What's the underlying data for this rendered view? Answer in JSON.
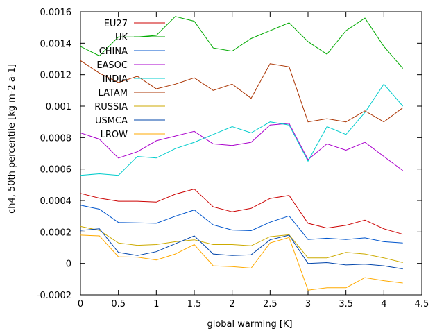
{
  "chart_data": {
    "type": "line",
    "xlabel": "global warming [K]",
    "ylabel": "ch4, 50th percentile [kg m-2 a-1]",
    "xlim": [
      0,
      4.5
    ],
    "ylim": [
      -0.0002,
      0.0016
    ],
    "xticks": [
      0,
      0.5,
      1,
      1.5,
      2,
      2.5,
      3,
      3.5,
      4,
      4.5
    ],
    "xtick_labels": [
      "0",
      "0.5",
      "1",
      "1.5",
      "2",
      "2.5",
      "3",
      "3.5",
      "4",
      "4.5"
    ],
    "yticks": [
      -0.0002,
      0,
      0.0002,
      0.0004,
      0.0006,
      0.0008,
      0.001,
      0.0012,
      0.0014,
      0.0016
    ],
    "ytick_labels": [
      "-0.0002",
      "0",
      "0.0002",
      "0.0004",
      "0.0006",
      "0.0008",
      "0.001",
      "0.0012",
      "0.0014",
      "0.0016"
    ],
    "grid": false,
    "legend_position": "top-left",
    "x": [
      0,
      0.25,
      0.5,
      0.75,
      1,
      1.25,
      1.5,
      1.75,
      2,
      2.25,
      2.5,
      2.75,
      3,
      3.25,
      3.5,
      3.75,
      4,
      4.25
    ],
    "series": [
      {
        "name": "EU27",
        "color": "#cc0000",
        "values": [
          0.000445,
          0.000415,
          0.000395,
          0.000395,
          0.00039,
          0.00044,
          0.000473,
          0.00036,
          0.000328,
          0.00035,
          0.000413,
          0.000432,
          0.000255,
          0.000225,
          0.000242,
          0.000275,
          0.00022,
          0.000185
        ]
      },
      {
        "name": "UK",
        "color": "#00aa00",
        "values": [
          0.00138,
          0.00132,
          0.00144,
          0.00144,
          0.00145,
          0.00157,
          0.00154,
          0.00137,
          0.00135,
          0.00143,
          0.00148,
          0.00153,
          0.00141,
          0.00133,
          0.00148,
          0.00156,
          0.00138,
          0.00124
        ]
      },
      {
        "name": "CHINA",
        "color": "#0055cc",
        "values": [
          0.00037,
          0.000345,
          0.00026,
          0.000258,
          0.000255,
          0.0003,
          0.00034,
          0.000245,
          0.000212,
          0.000208,
          0.000262,
          0.000302,
          0.000152,
          0.00016,
          0.000152,
          0.000162,
          0.000138,
          0.00013
        ]
      },
      {
        "name": "EASOC",
        "color": "#aa00cc",
        "values": [
          0.00083,
          0.00079,
          0.00067,
          0.00071,
          0.00078,
          0.00081,
          0.00084,
          0.00076,
          0.00075,
          0.00077,
          0.00088,
          0.00089,
          0.00066,
          0.00076,
          0.00072,
          0.00077,
          0.00068,
          0.00059
        ]
      },
      {
        "name": "INDIA",
        "color": "#00cccc",
        "values": [
          0.00056,
          0.00057,
          0.00056,
          0.00068,
          0.00067,
          0.00073,
          0.00077,
          0.00082,
          0.00087,
          0.00083,
          0.0009,
          0.00088,
          0.00065,
          0.00087,
          0.00082,
          0.00096,
          0.00114,
          0.001
        ]
      },
      {
        "name": "LATAM",
        "color": "#aa3300",
        "values": [
          0.00129,
          0.00121,
          0.00115,
          0.00119,
          0.00111,
          0.00114,
          0.00118,
          0.0011,
          0.00114,
          0.00105,
          0.00127,
          0.00125,
          0.0009,
          0.00092,
          0.0009,
          0.00097,
          0.0009,
          0.00099
        ]
      },
      {
        "name": "RUSSIA",
        "color": "#ccaa00",
        "values": [
          0.000235,
          0.00021,
          0.00013,
          0.000115,
          0.00012,
          0.000138,
          0.00015,
          0.00012,
          0.00012,
          0.000112,
          0.00017,
          0.000182,
          3.5e-05,
          3.5e-05,
          7e-05,
          6e-05,
          3.5e-05,
          5e-06
        ]
      },
      {
        "name": "USMCA",
        "color": "#0044aa",
        "values": [
          0.00021,
          0.00022,
          7e-05,
          5e-05,
          7.5e-05,
          0.000125,
          0.000175,
          6e-05,
          5e-05,
          5.5e-05,
          0.00015,
          0.00018,
          0.0,
          5e-06,
          -1e-05,
          -5e-06,
          -1.5e-05,
          -3.5e-05
        ]
      },
      {
        "name": "LROW",
        "color": "#ffaa00",
        "values": [
          0.00018,
          0.000175,
          4.2e-05,
          4e-05,
          2.2e-05,
          6e-05,
          0.00012,
          -1.5e-05,
          -2e-05,
          -3e-05,
          0.00013,
          0.000165,
          -0.00017,
          -0.000155,
          -0.000155,
          -9e-05,
          -0.00011,
          -0.000125
        ]
      }
    ]
  }
}
